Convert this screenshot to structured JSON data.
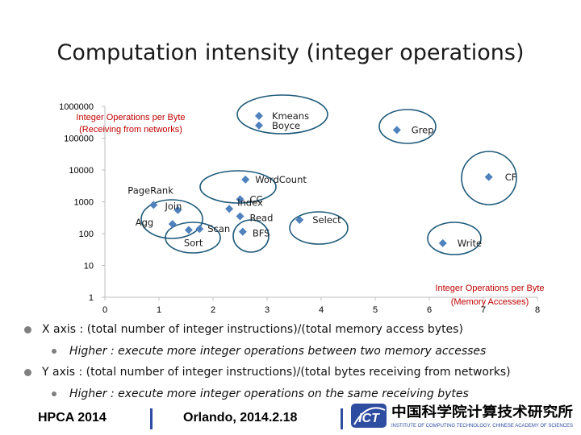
{
  "slide": {
    "title": "Computation intensity (integer operations)"
  },
  "chart_data": {
    "type": "scatter",
    "y_scale": "log",
    "xlim": [
      0,
      8
    ],
    "ylim": [
      1,
      1000000
    ],
    "x_ticks": [
      "0",
      "1",
      "2",
      "3",
      "4",
      "5",
      "6",
      "7",
      "8"
    ],
    "y_ticks": [
      "1",
      "10",
      "100",
      "1000",
      "10000",
      "100000",
      "1000000"
    ],
    "ylabel": "Integer Operations per Byte (Receiving from networks)",
    "xlabel": "Integer Operations per Byte (Memory Accesses)",
    "points": [
      {
        "label": "Kmeans",
        "x": 2.85,
        "y": 500000
      },
      {
        "label": "Boyce",
        "x": 2.85,
        "y": 250000
      },
      {
        "label": "Grep",
        "x": 5.4,
        "y": 180000
      },
      {
        "label": "CF",
        "x": 7.1,
        "y": 6000
      },
      {
        "label": "WordCount",
        "x": 2.6,
        "y": 5000
      },
      {
        "label": "CC",
        "x": 2.5,
        "y": 1200
      },
      {
        "label": "Index",
        "x": 2.3,
        "y": 600
      },
      {
        "label": "Read",
        "x": 2.5,
        "y": 350
      },
      {
        "label": "Select",
        "x": 3.6,
        "y": 270
      },
      {
        "label": "Write",
        "x": 6.25,
        "y": 50
      },
      {
        "label": "PageRank",
        "x": 0.9,
        "y": 800
      },
      {
        "label": "Join",
        "x": 1.35,
        "y": 550
      },
      {
        "label": "Agg",
        "x": 1.25,
        "y": 200
      },
      {
        "label": "Scan",
        "x": 1.75,
        "y": 140
      },
      {
        "label": "Sort",
        "x": 1.55,
        "y": 130
      },
      {
        "label": "BFS",
        "x": 2.55,
        "y": 115
      }
    ]
  },
  "bullets": {
    "x_axis": "X axis : (total number of integer instructions)/(total memory access bytes)",
    "x_sub": "Higher : execute more integer operations between two memory accesses",
    "y_axis": "Y axis : (total number of integer instructions)/(total bytes receiving from networks)",
    "y_sub": "Higher : execute more integer operations on the same receiving bytes"
  },
  "footer": {
    "conference": "HPCA 2014",
    "location": "Orlando, 2014.2.18",
    "logo_text": "ICT",
    "institute_cn": "中国科学院计算技术研究所",
    "institute_en": "INSTITUTE OF COMPUTING TECHNOLOGY, CHINESE ACADEMY OF SCIENCES"
  },
  "colors": {
    "marker": "#4f81bd",
    "axis_label": "#c00000",
    "divider": "#2e4da0",
    "logo_red": "#c00000"
  }
}
